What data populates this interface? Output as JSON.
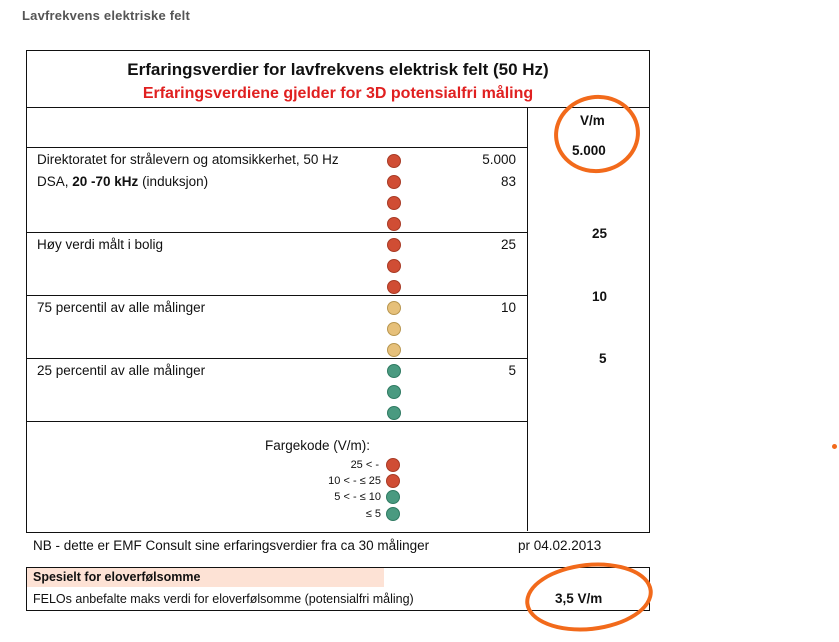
{
  "page_title": "Lavfrekvens elektriske felt",
  "table": {
    "title": "Erfaringsverdier for lavfrekvens elektrisk felt (50 Hz)",
    "subtitle": "Erfaringsverdiene gjelder for 3D potensialfri måling",
    "unit_header": "V/m",
    "rows": [
      {
        "label": "Direktoratet for strålevern og atomsikkerhet, 50 Hz",
        "value": "5.000",
        "color": "red"
      },
      {
        "label_pre": "DSA, ",
        "label_bold": "20 -70 kHz",
        "label_post": " (induksjon)",
        "value": "83",
        "color": "red"
      },
      {
        "label": "Høy verdi målt i bolig",
        "value": "25",
        "color": "red"
      },
      {
        "label": "75 percentil av alle målinger",
        "value": "10",
        "color": "amber"
      },
      {
        "label": "25 percentil av alle målinger",
        "value": "5",
        "color": "green"
      }
    ],
    "right_values": [
      "5.000",
      "25",
      "10",
      "5"
    ],
    "legend": {
      "title": "Fargekode  (V/m):",
      "items": [
        {
          "label": "25 < -",
          "color": "red"
        },
        {
          "label": "10 < -   ≤ 25",
          "color": "red"
        },
        {
          "label": "5 < -   ≤ 10",
          "color": "green"
        },
        {
          "label": "≤ 5",
          "color": "green"
        }
      ]
    },
    "colors": {
      "red": "#d04d34",
      "amber": "#e6c07a",
      "green": "#4a9a80",
      "title_red": "#e02020",
      "annotation": "#f26a1b"
    }
  },
  "note": {
    "text": "NB - dette er EMF Consult sine erfaringsverdier fra ca 30 målinger",
    "date": "pr 04.02.2013"
  },
  "special": {
    "header": "Spesielt for eloverfølsomme",
    "text": "FELOs anbefalte maks verdi for eloverfølsomme (potensialfri måling)",
    "value": "3,5 V/m"
  }
}
